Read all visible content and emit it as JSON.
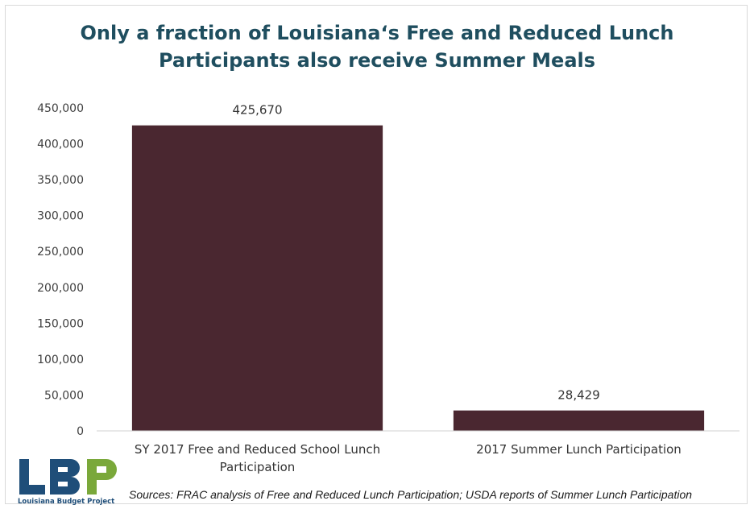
{
  "chart_data": {
    "type": "bar",
    "title_lines": [
      "Only a fraction of Louisiana‘s Free and Reduced Lunch",
      "Participants also receive Summer Meals"
    ],
    "categories": [
      [
        "SY 2017 Free and Reduced School Lunch",
        "Participation"
      ],
      [
        "2017 Summer Lunch Participation"
      ]
    ],
    "values": [
      425670,
      28429
    ],
    "data_labels": [
      "425,670",
      "28,429"
    ],
    "ylim": [
      0,
      450000
    ],
    "yticks": [
      0,
      50000,
      100000,
      150000,
      200000,
      250000,
      300000,
      350000,
      400000,
      450000
    ],
    "ytick_labels": [
      "0",
      "50,000",
      "100,000",
      "150,000",
      "200,000",
      "250,000",
      "300,000",
      "350,000",
      "400,000",
      "450,000"
    ],
    "bar_color": "#4a2730",
    "grid": false,
    "legend": "none"
  },
  "logo": {
    "text": "Louisiana Budget Project",
    "letters": "LBP",
    "colors": [
      "#1f4e79",
      "#7aa83a"
    ]
  },
  "source": "Sources: FRAC analysis of Free and Reduced Lunch Participation; USDA reports of Summer Lunch Participation"
}
